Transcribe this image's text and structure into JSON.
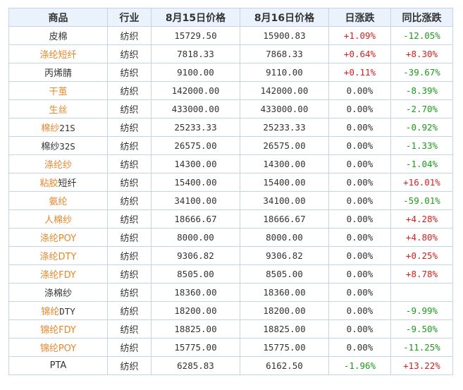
{
  "headers": [
    "商品",
    "行业",
    "8月15日价格",
    "8月16日价格",
    "日涨跌",
    "同比涨跌"
  ],
  "colors": {
    "orange": "#e8862a",
    "red": "#d81e1e",
    "green": "#1a9b1a"
  },
  "rows": [
    {
      "name_a": "皮棉",
      "name_a_color": "",
      "name_b": "",
      "name_b_color": "",
      "industry": "纺织",
      "p15": "15729.50",
      "p16": "15900.83",
      "daily": "+1.09%",
      "daily_color": "red",
      "yoy": "-12.05%",
      "yoy_color": "green"
    },
    {
      "name_a": "涤纶短纤",
      "name_a_color": "orange",
      "name_b": "",
      "name_b_color": "",
      "industry": "纺织",
      "p15": "7818.33",
      "p16": "7868.33",
      "daily": "+0.64%",
      "daily_color": "red",
      "yoy": "+8.30%",
      "yoy_color": "red"
    },
    {
      "name_a": "丙烯腈",
      "name_a_color": "",
      "name_b": "",
      "name_b_color": "",
      "industry": "纺织",
      "p15": "9100.00",
      "p16": "9110.00",
      "daily": "+0.11%",
      "daily_color": "red",
      "yoy": "-39.67%",
      "yoy_color": "green"
    },
    {
      "name_a": "干茧",
      "name_a_color": "orange",
      "name_b": "",
      "name_b_color": "",
      "industry": "纺织",
      "p15": "142000.00",
      "p16": "142000.00",
      "daily": "0.00%",
      "daily_color": "",
      "yoy": "-8.39%",
      "yoy_color": "green"
    },
    {
      "name_a": "生丝",
      "name_a_color": "orange",
      "name_b": "",
      "name_b_color": "",
      "industry": "纺织",
      "p15": "433000.00",
      "p16": "433000.00",
      "daily": "0.00%",
      "daily_color": "",
      "yoy": "-2.70%",
      "yoy_color": "green"
    },
    {
      "name_a": "棉纱",
      "name_a_color": "orange",
      "name_b": "21S",
      "name_b_color": "",
      "industry": "纺织",
      "p15": "25233.33",
      "p16": "25233.33",
      "daily": "0.00%",
      "daily_color": "",
      "yoy": "-0.92%",
      "yoy_color": "green"
    },
    {
      "name_a": "棉纱",
      "name_a_color": "",
      "name_b": "32S",
      "name_b_color": "",
      "industry": "纺织",
      "p15": "26575.00",
      "p16": "26575.00",
      "daily": "0.00%",
      "daily_color": "",
      "yoy": "-1.33%",
      "yoy_color": "green"
    },
    {
      "name_a": "涤纶纱",
      "name_a_color": "orange",
      "name_b": "",
      "name_b_color": "",
      "industry": "纺织",
      "p15": "14300.00",
      "p16": "14300.00",
      "daily": "0.00%",
      "daily_color": "",
      "yoy": "-1.04%",
      "yoy_color": "green"
    },
    {
      "name_a": "粘胶",
      "name_a_color": "orange",
      "name_b": "短纤",
      "name_b_color": "",
      "industry": "纺织",
      "p15": "15400.00",
      "p16": "15400.00",
      "daily": "0.00%",
      "daily_color": "",
      "yoy": "+16.01%",
      "yoy_color": "red"
    },
    {
      "name_a": "氨纶",
      "name_a_color": "orange",
      "name_b": "",
      "name_b_color": "",
      "industry": "纺织",
      "p15": "34100.00",
      "p16": "34100.00",
      "daily": "0.00%",
      "daily_color": "",
      "yoy": "-59.01%",
      "yoy_color": "green"
    },
    {
      "name_a": "人棉纱",
      "name_a_color": "orange",
      "name_b": "",
      "name_b_color": "",
      "industry": "纺织",
      "p15": "18666.67",
      "p16": "18666.67",
      "daily": "0.00%",
      "daily_color": "",
      "yoy": "+4.28%",
      "yoy_color": "red"
    },
    {
      "name_a": "涤纶POY",
      "name_a_color": "orange",
      "name_b": "",
      "name_b_color": "",
      "industry": "纺织",
      "p15": "8000.00",
      "p16": "8000.00",
      "daily": "0.00%",
      "daily_color": "",
      "yoy": "+4.80%",
      "yoy_color": "red"
    },
    {
      "name_a": "涤纶DTY",
      "name_a_color": "orange",
      "name_b": "",
      "name_b_color": "",
      "industry": "纺织",
      "p15": "9306.82",
      "p16": "9306.82",
      "daily": "0.00%",
      "daily_color": "",
      "yoy": "+0.25%",
      "yoy_color": "red"
    },
    {
      "name_a": "涤纶FDY",
      "name_a_color": "orange",
      "name_b": "",
      "name_b_color": "",
      "industry": "纺织",
      "p15": "8505.00",
      "p16": "8505.00",
      "daily": "0.00%",
      "daily_color": "",
      "yoy": "+8.78%",
      "yoy_color": "red"
    },
    {
      "name_a": "涤棉纱",
      "name_a_color": "",
      "name_b": "",
      "name_b_color": "",
      "industry": "纺织",
      "p15": "18360.00",
      "p16": "18360.00",
      "daily": "0.00%",
      "daily_color": "",
      "yoy": "",
      "yoy_color": ""
    },
    {
      "name_a": "锦纶",
      "name_a_color": "orange",
      "name_b": "DTY",
      "name_b_color": "",
      "industry": "纺织",
      "p15": "18200.00",
      "p16": "18200.00",
      "daily": "0.00%",
      "daily_color": "",
      "yoy": "-9.99%",
      "yoy_color": "green"
    },
    {
      "name_a": "锦纶FDY",
      "name_a_color": "orange",
      "name_b": "",
      "name_b_color": "",
      "industry": "纺织",
      "p15": "18825.00",
      "p16": "18825.00",
      "daily": "0.00%",
      "daily_color": "",
      "yoy": "-9.50%",
      "yoy_color": "green"
    },
    {
      "name_a": "锦纶POY",
      "name_a_color": "orange",
      "name_b": "",
      "name_b_color": "",
      "industry": "纺织",
      "p15": "15775.00",
      "p16": "15775.00",
      "daily": "0.00%",
      "daily_color": "",
      "yoy": "-11.25%",
      "yoy_color": "green"
    },
    {
      "name_a": "PTA",
      "name_a_color": "",
      "name_b": "",
      "name_b_color": "",
      "industry": "纺织",
      "p15": "6285.83",
      "p16": "6162.50",
      "daily": "-1.96%",
      "daily_color": "green",
      "yoy": "+13.22%",
      "yoy_color": "red"
    }
  ]
}
